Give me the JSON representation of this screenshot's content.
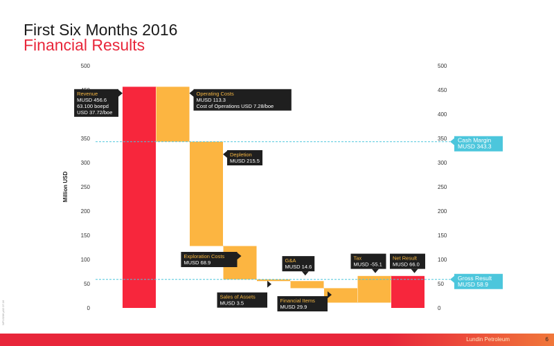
{
  "header": {
    "title": "First Six Months 2016",
    "subtitle": "Financial Results",
    "side_note": "WF13206 p02 07.16"
  },
  "footer": {
    "brand": "Lundin Petroleum",
    "page": "6"
  },
  "colors": {
    "red": "#f7263c",
    "orange": "#fcb541",
    "cyan": "#4cc6dc",
    "label_bg": "#1f1f1f",
    "label_title": "#f6b743"
  },
  "chart_data": {
    "type": "bar",
    "ylabel": "Million USD",
    "ylim": [
      0,
      500
    ],
    "yticks": [
      0,
      50,
      100,
      150,
      200,
      250,
      300,
      350,
      400,
      450,
      500
    ],
    "bars": [
      {
        "name": "Revenue",
        "base": 0,
        "top": 456.6,
        "color": "red"
      },
      {
        "name": "Operating Costs",
        "base": 343.3,
        "top": 456.6,
        "color": "orange"
      },
      {
        "name": "Depletion",
        "base": 127.8,
        "top": 343.3,
        "color": "orange"
      },
      {
        "name": "Exploration Costs",
        "base": 58.9,
        "top": 127.8,
        "color": "orange"
      },
      {
        "name": "Sales of Assets",
        "base": 55.4,
        "top": 58.9,
        "color": "orange"
      },
      {
        "name": "G&A",
        "base": 40.8,
        "top": 55.4,
        "color": "orange"
      },
      {
        "name": "Financial Items",
        "base": 10.9,
        "top": 40.8,
        "color": "orange"
      },
      {
        "name": "Tax",
        "base": 10.9,
        "top": 66.0,
        "color": "orange"
      },
      {
        "name": "Net Result",
        "base": 0,
        "top": 66.0,
        "color": "red"
      }
    ],
    "reference_lines": [
      {
        "name": "Cash Margin",
        "value": 343.3,
        "label": [
          "Cash Margin",
          "MUSD 343.3"
        ]
      },
      {
        "name": "Gross Result",
        "value": 58.9,
        "label": [
          "Gross Result",
          "MUSD 58.9"
        ]
      }
    ],
    "annotations": [
      {
        "bar": 0,
        "anchor": 446,
        "side": "left",
        "lines": [
          "Revenue",
          "MUSD 456.6",
          "63.100 boepd",
          "USD 37.72/boe"
        ]
      },
      {
        "bar": 1,
        "anchor": 446,
        "side": "right",
        "lines": [
          "Operating Costs",
          "MUSD 113.3",
          "Cost of Operations USD 7.28/boe"
        ]
      },
      {
        "bar": 2,
        "anchor": 320,
        "side": "right",
        "lines": [
          "Depletion",
          "MUSD 215.5"
        ]
      },
      {
        "bar": 3,
        "anchor": 110,
        "side": "left",
        "lines": [
          "Exploration Costs",
          "MUSD 68.9"
        ]
      },
      {
        "bar": 4,
        "anchor": 52,
        "side": "left",
        "lines": [
          "Sales of Assets",
          "MUSD 3.5"
        ]
      },
      {
        "bar": 5,
        "anchor": 67,
        "side": "above",
        "lines": [
          "G&A",
          "MUSD 14.6"
        ]
      },
      {
        "bar": 6,
        "anchor": 30,
        "side": "left",
        "lines": [
          "Financial Items",
          "MUSD 29.9"
        ]
      },
      {
        "bar": 7,
        "anchor": 72,
        "side": "above",
        "lines": [
          "Tax",
          "MUSD -55.1"
        ]
      },
      {
        "bar": 8,
        "anchor": 72,
        "side": "above",
        "lines": [
          "Net Result",
          "MUSD 66.0"
        ]
      }
    ]
  }
}
